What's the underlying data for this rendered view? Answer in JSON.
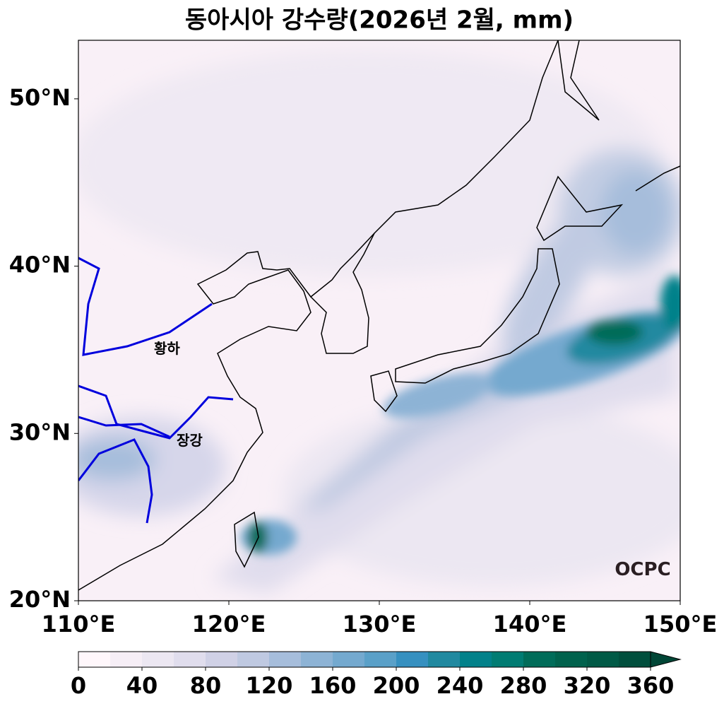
{
  "map": {
    "title": "동아시아 강수량(2026년 2월, mm)",
    "xlim": [
      110,
      150
    ],
    "ylim": [
      20,
      53.5
    ],
    "xticks": [
      {
        "value": 110,
        "label": "110°E"
      },
      {
        "value": 120,
        "label": "120°E"
      },
      {
        "value": 130,
        "label": "130°E"
      },
      {
        "value": 140,
        "label": "140°E"
      },
      {
        "value": 150,
        "label": "150°E"
      }
    ],
    "yticks": [
      {
        "value": 20,
        "label": "20°N"
      },
      {
        "value": 30,
        "label": "30°N"
      },
      {
        "value": 40,
        "label": "40°N"
      },
      {
        "value": 50,
        "label": "50°N"
      }
    ],
    "river_labels": [
      "황하",
      "장강"
    ],
    "logo": "OCPC",
    "colorbar": {
      "lim": [
        0,
        360
      ],
      "ticks": [
        0,
        40,
        80,
        120,
        160,
        200,
        240,
        280,
        320,
        360
      ],
      "colors": [
        "#fff7fb",
        "#f6eef6",
        "#ece7f2",
        "#e0dded",
        "#d0d1e6",
        "#bfc9e1",
        "#a6bddb",
        "#8db3d5",
        "#74a9cf",
        "#5aa0c8",
        "#3690c0",
        "#2189a0",
        "#02818a",
        "#017c73",
        "#016c59",
        "#01624d",
        "#015a46",
        "#014f3d",
        "#014636"
      ]
    }
  }
}
